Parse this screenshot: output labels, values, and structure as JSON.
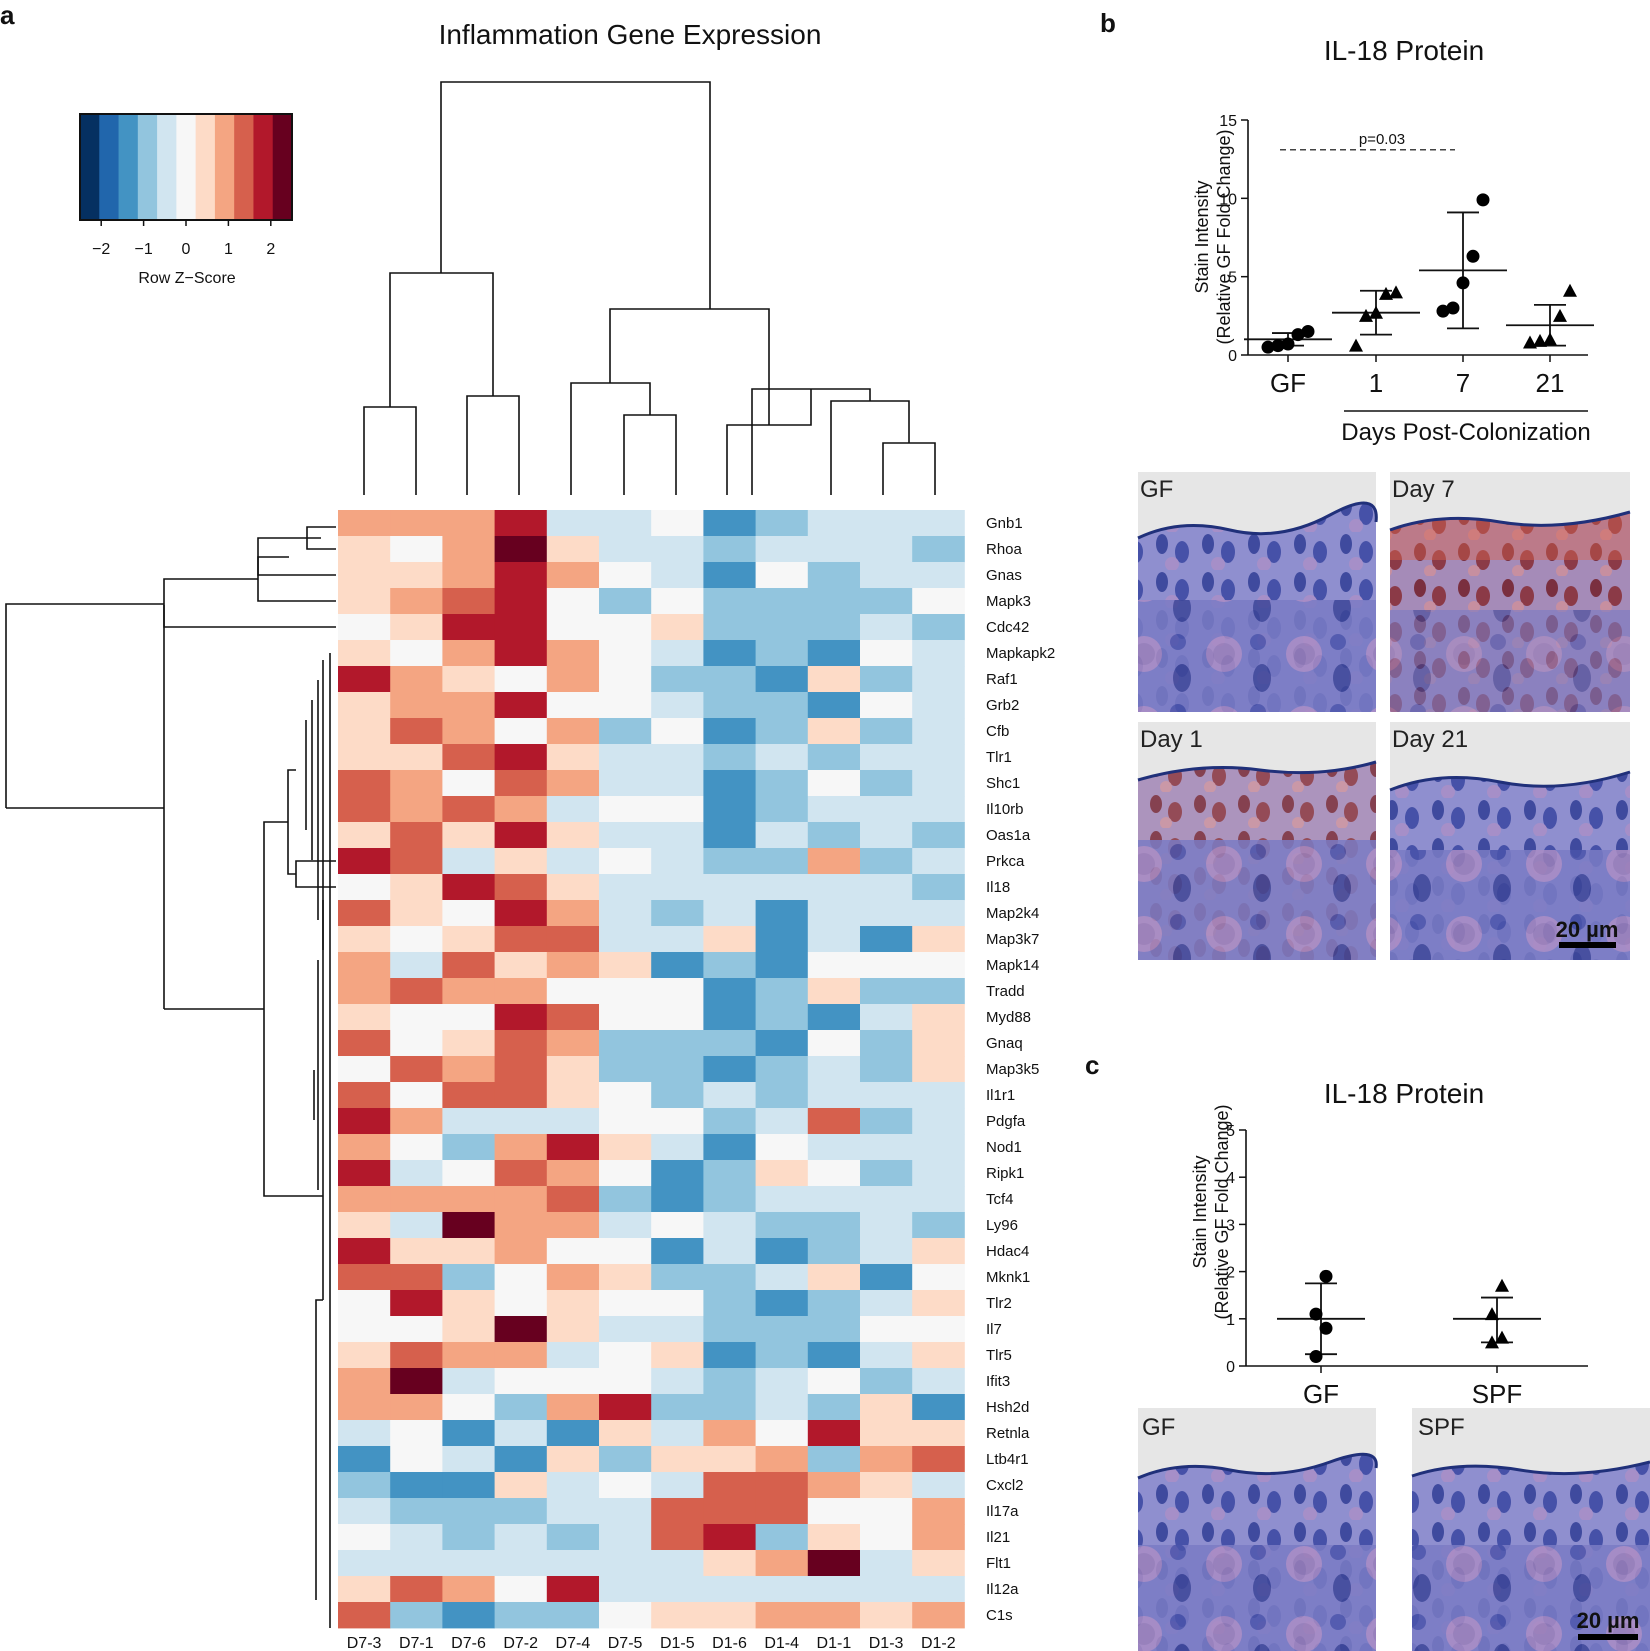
{
  "panel_labels": {
    "a": "a",
    "b": "b",
    "c": "c"
  },
  "panel_a": {
    "title": "Inflammation Gene Expression",
    "legend": {
      "title": "Row Z−Score",
      "ticks": [
        "−2",
        "−1",
        "0",
        "1",
        "2"
      ],
      "colors": [
        "#053061",
        "#2166ac",
        "#4393c3",
        "#92c5de",
        "#d1e5f0",
        "#f7f7f7",
        "#fddbc7",
        "#f4a582",
        "#d6604d",
        "#b2182b",
        "#67001f"
      ]
    }
  },
  "panel_b": {
    "title": "IL-18 Protein",
    "ylabel_line1": "Stain Intensity",
    "ylabel_line2": "(Relative GF Fold Change)",
    "xlabel": "Days Post-Colonization",
    "significance": "p=0.03",
    "photo_labels": [
      "GF",
      "Day 7",
      "Day 1",
      "Day 21"
    ],
    "scale_bar": "20 µm"
  },
  "panel_c": {
    "title": "IL-18 Protein",
    "ylabel_line1": "Stain Intensity",
    "ylabel_line2": "(Relative GF Fold Change)",
    "photo_labels": [
      "GF",
      "SPF"
    ],
    "scale_bar": "20 µm"
  },
  "chart_data": [
    {
      "type": "heatmap",
      "title": "Inflammation Gene Expression",
      "columns": [
        "D7-3",
        "D7-1",
        "D7-6",
        "D7-2",
        "D7-4",
        "D7-5",
        "D1-5",
        "D1-6",
        "D1-4",
        "D1-1",
        "D1-3",
        "D1-2"
      ],
      "rows": [
        "Gnb1",
        "Rhoa",
        "Gnas",
        "Mapk3",
        "Cdc42",
        "Mapkapk2",
        "Raf1",
        "Grb2",
        "Cfb",
        "Tlr1",
        "Shc1",
        "Il10rb",
        "Oas1a",
        "Prkca",
        "Il18",
        "Map2k4",
        "Map3k7",
        "Mapk14",
        "Tradd",
        "Myd88",
        "Gnaq",
        "Map3k5",
        "Il1r1",
        "Pdgfa",
        "Nod1",
        "Ripk1",
        "Tcf4",
        "Ly96",
        "Hdac4",
        "Mknk1",
        "Tlr2",
        "Il7",
        "Tlr5",
        "Ifit3",
        "Hsh2d",
        "Retnla",
        "Ltb4r1",
        "Cxcl2",
        "Il17a",
        "Il21",
        "Flt1",
        "Il12a",
        "C1s"
      ],
      "values": [
        [
          1,
          1,
          1,
          2,
          -0.5,
          -0.5,
          0,
          -1.5,
          -1,
          -0.5,
          -0.5,
          -0.5
        ],
        [
          0.5,
          0,
          1,
          3,
          0.5,
          -0.5,
          -0.5,
          -1,
          -0.5,
          -0.5,
          -0.5,
          -1
        ],
        [
          0.5,
          0.5,
          1,
          2,
          1,
          0,
          -0.5,
          -1.5,
          0,
          -1,
          -0.5,
          -0.5
        ],
        [
          0.5,
          1,
          1.5,
          2,
          0,
          -1,
          0,
          -1,
          -1,
          -1,
          -1,
          0
        ],
        [
          0,
          0.5,
          2,
          2,
          0,
          0,
          0.5,
          -1,
          -1,
          -1,
          -0.5,
          -1
        ],
        [
          0.5,
          0,
          1,
          2,
          1,
          0,
          -0.5,
          -1.5,
          -1,
          -1.5,
          0,
          -0.5
        ],
        [
          2,
          1,
          0.5,
          0,
          1,
          0,
          -1,
          -1,
          -1.5,
          0.5,
          -1,
          -0.5
        ],
        [
          0.5,
          1,
          1,
          2,
          0,
          0,
          -0.5,
          -1,
          -1,
          -1.5,
          0,
          -0.5
        ],
        [
          0.5,
          1.5,
          1,
          0,
          1,
          -1,
          0,
          -1.5,
          -1,
          0.5,
          -1,
          -0.5
        ],
        [
          0.5,
          0.5,
          1.5,
          2,
          0.5,
          -0.5,
          -0.5,
          -1,
          -0.5,
          -1,
          -0.5,
          -0.5
        ],
        [
          1.5,
          1,
          0,
          1.5,
          1,
          -0.5,
          -0.5,
          -1.5,
          -1,
          0,
          -1,
          -0.5
        ],
        [
          1.5,
          1,
          1.5,
          1,
          -0.5,
          0,
          0,
          -1.5,
          -1,
          -0.5,
          -0.5,
          -0.5
        ],
        [
          0.5,
          1.5,
          0.5,
          2,
          0.5,
          -0.5,
          -0.5,
          -1.5,
          -0.5,
          -1,
          -0.5,
          -1
        ],
        [
          2,
          1.5,
          -0.5,
          0.5,
          -0.5,
          0,
          -0.5,
          -1,
          -1,
          1,
          -1,
          -0.5
        ],
        [
          0,
          0.5,
          2,
          1.5,
          0.5,
          -0.5,
          -0.5,
          -0.5,
          -0.5,
          -0.5,
          -0.5,
          -1
        ],
        [
          1.5,
          0.5,
          0,
          2,
          1,
          -0.5,
          -1,
          -0.5,
          -1.5,
          -0.5,
          -0.5,
          -0.5
        ],
        [
          0.5,
          0,
          0.5,
          1.5,
          1.5,
          -0.5,
          -0.5,
          0.5,
          -1.5,
          -0.5,
          -1.5,
          0.5
        ],
        [
          1,
          -0.5,
          1.5,
          0.5,
          1,
          0.5,
          -1.5,
          -1,
          -1.5,
          0,
          0,
          0
        ],
        [
          1,
          1.5,
          1,
          1,
          0,
          0,
          0,
          -1.5,
          -1,
          0.5,
          -1,
          -1
        ],
        [
          0.5,
          0,
          0,
          2,
          1.5,
          0,
          0,
          -1.5,
          -1,
          -1.5,
          -0.5,
          0.5
        ],
        [
          1.5,
          0,
          0.5,
          1.5,
          1,
          -1,
          -1,
          -1,
          -1.5,
          0,
          -1,
          0.5
        ],
        [
          0,
          1.5,
          1,
          1.5,
          0.5,
          -1,
          -1,
          -1.5,
          -1,
          -0.5,
          -1,
          0.5
        ],
        [
          1.5,
          0,
          1.5,
          1.5,
          0.5,
          0,
          -1,
          -0.5,
          -1,
          -0.5,
          -0.5,
          -0.5
        ],
        [
          2,
          1,
          -0.5,
          -0.5,
          -0.5,
          0,
          0,
          -1,
          -0.5,
          1.5,
          -1,
          -0.5
        ],
        [
          1,
          0,
          -1,
          1,
          2,
          0.5,
          -0.5,
          -1.5,
          0,
          -0.5,
          -0.5,
          -0.5
        ],
        [
          2,
          -0.5,
          0,
          1.5,
          1,
          0,
          -1.5,
          -1,
          0.5,
          0,
          -1,
          -0.5
        ],
        [
          1,
          1,
          1,
          1,
          1.5,
          -1,
          -1.5,
          -1,
          -0.5,
          -0.5,
          -0.5,
          -0.5
        ],
        [
          0.5,
          -0.5,
          3,
          1,
          1,
          -0.5,
          0,
          -0.5,
          -1,
          -1,
          -0.5,
          -1
        ],
        [
          2,
          0.5,
          0.5,
          1,
          0,
          0,
          -1.5,
          -0.5,
          -1.5,
          -1,
          -0.5,
          0.5
        ],
        [
          1.5,
          1.5,
          -1,
          0,
          1,
          0.5,
          -1,
          -1,
          -0.5,
          0.5,
          -1.5,
          0
        ],
        [
          0,
          2,
          0.5,
          0,
          0.5,
          0,
          0,
          -1,
          -1.5,
          -1,
          -0.5,
          0.5
        ],
        [
          0,
          0,
          0.5,
          3,
          0.5,
          -0.5,
          -0.5,
          -1,
          -1,
          -1,
          0,
          0
        ],
        [
          0.5,
          1.5,
          1,
          1,
          -0.5,
          0,
          0.5,
          -1.5,
          -1,
          -1.5,
          -0.5,
          0.5
        ],
        [
          1,
          3,
          -0.5,
          0,
          0,
          0,
          -0.5,
          -1,
          -0.5,
          0,
          -1,
          -0.5
        ],
        [
          1,
          1,
          0,
          -1,
          1,
          2,
          -1,
          -1,
          -0.5,
          -1,
          0.5,
          -1.5
        ],
        [
          -0.5,
          0,
          -1.5,
          -0.5,
          -1.5,
          0.5,
          -0.5,
          1,
          0,
          2,
          0.5,
          0.5
        ],
        [
          -1.5,
          0,
          -0.5,
          -1.5,
          0.5,
          -1,
          0.5,
          0.5,
          1,
          -1,
          1,
          1.5
        ],
        [
          -1,
          -1.5,
          -1.5,
          0.5,
          -0.5,
          0,
          -0.5,
          1.5,
          1.5,
          1,
          0.5,
          -0.5
        ],
        [
          -0.5,
          -1,
          -1,
          -1,
          -0.5,
          -0.5,
          1.5,
          1.5,
          1.5,
          0,
          0,
          1
        ],
        [
          0,
          -0.5,
          -1,
          -0.5,
          -1,
          -0.5,
          1.5,
          2,
          -1,
          0.5,
          0,
          1
        ],
        [
          -0.5,
          -0.5,
          -0.5,
          -0.5,
          -0.5,
          -0.5,
          -0.5,
          0.5,
          1,
          3,
          -0.5,
          0.5
        ],
        [
          0.5,
          1.5,
          1,
          0,
          2,
          -0.5,
          -0.5,
          -0.5,
          -0.5,
          -0.5,
          -0.5,
          -0.5
        ],
        [
          1.5,
          -1,
          -1.5,
          -1,
          -1,
          0,
          0.5,
          0.5,
          1,
          1,
          0.5,
          1
        ]
      ],
      "color_scale": "Row Z−Score",
      "clim": [
        -2.5,
        2.5
      ]
    },
    {
      "type": "scatter",
      "title": "IL-18 Protein",
      "categories": [
        "GF",
        "1",
        "7",
        "21"
      ],
      "xlabel": "Days Post-Colonization",
      "ylabel": "Stain Intensity (Relative GF Fold Change)",
      "ylim": [
        0,
        15
      ],
      "yticks": [
        0,
        5,
        10,
        15
      ],
      "markers": [
        "circle",
        "triangle",
        "circle",
        "triangle"
      ],
      "points": [
        [
          0.5,
          0.6,
          0.7,
          1.3,
          1.5
        ],
        [
          0.6,
          2.5,
          2.7,
          3.9,
          4.0
        ],
        [
          2.8,
          3.0,
          4.6,
          6.3,
          9.9
        ],
        [
          0.8,
          0.9,
          1.0,
          2.5,
          4.1
        ]
      ],
      "mean": [
        1.0,
        2.7,
        5.4,
        1.9
      ],
      "error_low": [
        0.6,
        1.3,
        1.7,
        0.6
      ],
      "error_high": [
        1.4,
        4.1,
        9.1,
        3.2
      ],
      "annotation": "p=0.03"
    },
    {
      "type": "scatter",
      "title": "IL-18 Protein",
      "categories": [
        "GF",
        "SPF"
      ],
      "ylabel": "Stain Intensity (Relative GF Fold Change)",
      "ylim": [
        0,
        5
      ],
      "yticks": [
        0,
        1,
        2,
        3,
        4,
        5
      ],
      "markers": [
        "circle",
        "triangle"
      ],
      "points": [
        [
          0.2,
          0.8,
          1.1,
          1.9
        ],
        [
          0.5,
          0.6,
          1.1,
          1.7
        ]
      ],
      "mean": [
        1.0,
        1.0
      ],
      "error_low": [
        0.25,
        0.5
      ],
      "error_high": [
        1.75,
        1.45
      ]
    }
  ]
}
